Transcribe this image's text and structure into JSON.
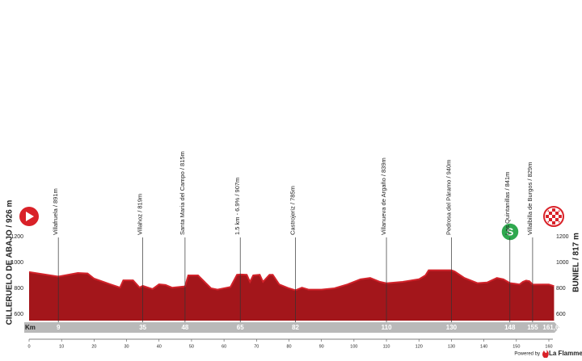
{
  "chart_data": {
    "type": "area",
    "start_label": "CILLERUELO DE ABAJO / 926 m",
    "finish_label": "BUNIEL / 817 m",
    "color": "#a3161b",
    "edge_color": "#d2222a",
    "x": [
      0,
      9,
      15,
      18,
      20,
      25,
      28,
      29,
      32,
      34,
      35,
      38,
      40,
      42,
      44,
      48,
      49,
      52,
      54,
      56,
      58,
      62,
      64,
      65,
      67,
      68,
      69,
      71,
      72,
      74,
      75,
      77,
      80,
      82,
      84,
      86,
      90,
      94,
      98,
      102,
      105,
      108,
      110,
      115,
      120,
      122,
      123,
      127,
      130,
      131,
      134,
      138,
      141,
      144,
      146,
      148,
      151,
      152,
      153,
      154,
      155,
      158,
      160,
      161.6
    ],
    "values": [
      926,
      891,
      919,
      915,
      875,
      831,
      806,
      862,
      862,
      806,
      819,
      794,
      831,
      826,
      805,
      815,
      900,
      900,
      850,
      800,
      790,
      810,
      905,
      907,
      905,
      850,
      900,
      905,
      850,
      905,
      905,
      830,
      800,
      785,
      805,
      790,
      790,
      800,
      830,
      870,
      880,
      850,
      839,
      850,
      870,
      900,
      940,
      940,
      940,
      930,
      880,
      840,
      845,
      880,
      870,
      841,
      830,
      850,
      860,
      855,
      829,
      830,
      830,
      817
    ],
    "xlim": [
      0,
      161.6
    ],
    "ylim": [
      550,
      1200
    ],
    "yticks": [
      600,
      800,
      1000,
      1200
    ],
    "xticks": [
      0,
      10,
      20,
      30,
      40,
      50,
      60,
      70,
      80,
      90,
      100,
      110,
      120,
      130,
      140,
      150,
      160
    ],
    "km_label": "Km",
    "distance": {
      "value": 161.6,
      "label": "161,6"
    },
    "waypoints": [
      {
        "label": "Villafruela / 891m",
        "km": 9
      },
      {
        "label": "Villahoz / 819m",
        "km": 35
      },
      {
        "label": "Santa Maria del Campo / 815m",
        "km": 48
      },
      {
        "label": "1.5 km - 6.9% / 907m",
        "km": 65
      },
      {
        "label": "Castrojeriz / 785m",
        "km": 82
      },
      {
        "label": "Villanueva de Argaño / 839m",
        "km": 110
      },
      {
        "label": "Pedrosa del Páramo / 940m",
        "km": 130
      },
      {
        "label": "Las Quintanillas / 841m",
        "km": 148
      },
      {
        "label": "Villalbilla de Burgos / 829m",
        "km": 155
      }
    ],
    "sprint_icon": "S",
    "powered_by": "Powered by",
    "brand": "La FlammeRouge"
  }
}
